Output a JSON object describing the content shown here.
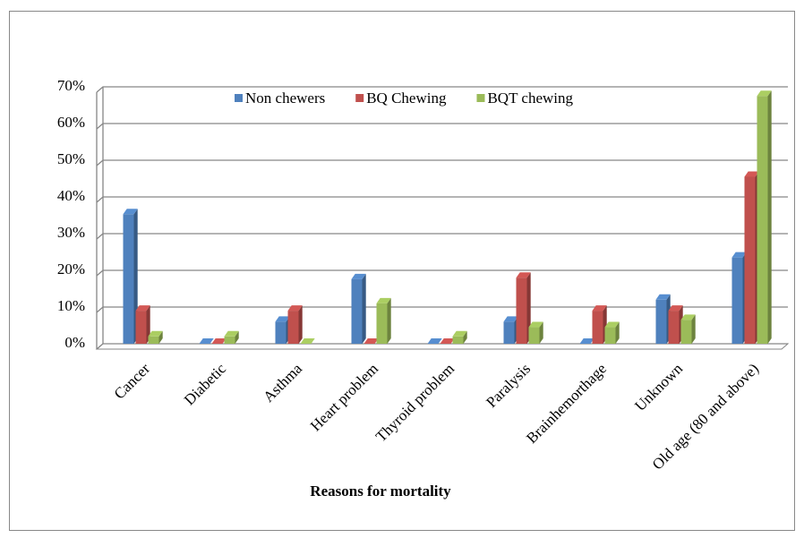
{
  "chart_data": {
    "type": "bar3d",
    "x_label": "Reasons for mortality",
    "categories": [
      "Cancer",
      "Diabetic",
      "Asthma",
      "Heart problem",
      "Thyroid problem",
      "Paralysis",
      "Brainhemorthage",
      "Unknown",
      "Old age (80 and above)"
    ],
    "series": [
      {
        "name": "Non chewers",
        "color": "#4f81bd",
        "values": [
          35.3,
          0,
          6,
          17.6,
          0,
          6,
          0,
          12,
          23.5
        ]
      },
      {
        "name": "BQ Chewing",
        "color": "#c0504d",
        "values": [
          9,
          0,
          9,
          0,
          0,
          18,
          9,
          9,
          45.5
        ]
      },
      {
        "name": "BQT chewing",
        "color": "#9bbb59",
        "values": [
          2,
          2,
          0,
          11,
          2,
          4.5,
          4.5,
          6.5,
          67.5
        ]
      }
    ],
    "ylim": [
      0,
      70
    ],
    "yticks": [
      {
        "value": 0,
        "label": "0%"
      },
      {
        "value": 10,
        "label": "10%"
      },
      {
        "value": 20,
        "label": "20%"
      },
      {
        "value": 30,
        "label": "30%"
      },
      {
        "value": 40,
        "label": "40%"
      },
      {
        "value": 50,
        "label": "50%"
      },
      {
        "value": 60,
        "label": "60%"
      },
      {
        "value": 70,
        "label": "70%"
      }
    ],
    "grid": true,
    "legend": "top"
  }
}
